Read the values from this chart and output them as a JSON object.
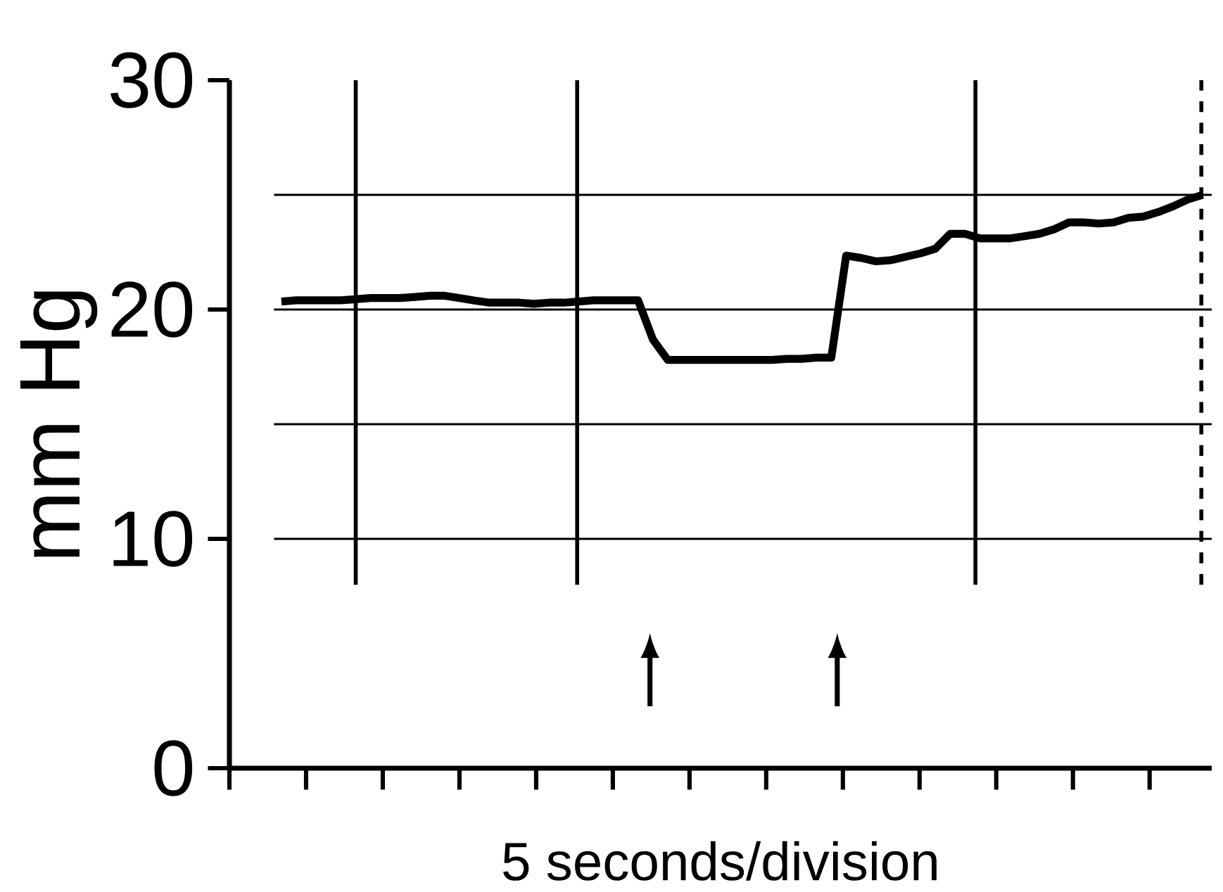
{
  "chart_data": {
    "type": "line",
    "xlabel": "5 seconds/division",
    "ylabel": "mm Hg",
    "categories": [
      null,
      null,
      null,
      null,
      null,
      null,
      null,
      null,
      null,
      null,
      null,
      null,
      null,
      null,
      null,
      null,
      null,
      null,
      null,
      null,
      null,
      null,
      null,
      null,
      null,
      null,
      null,
      null,
      null,
      null,
      null,
      null,
      null,
      null,
      null,
      null,
      null,
      null,
      null,
      null,
      null,
      null,
      null,
      null,
      null,
      null,
      null,
      null,
      null,
      null,
      null,
      null,
      null,
      null,
      null,
      null,
      null,
      null,
      null,
      null,
      null,
      null,
      null
    ],
    "series": [
      {
        "color": "#000000",
        "values": [
          20.35,
          20.4,
          20.4,
          20.4,
          20.4,
          20.45,
          20.5,
          20.5,
          20.5,
          20.55,
          20.6,
          20.6,
          20.5,
          20.39,
          20.3,
          20.3,
          20.3,
          20.25,
          20.3,
          20.3,
          20.35,
          20.4,
          20.4,
          20.4,
          20.4,
          18.69,
          17.8,
          17.8,
          17.8,
          17.8,
          17.8,
          17.8,
          17.8,
          17.8,
          17.85,
          17.85,
          17.9,
          17.9,
          22.35,
          22.25,
          22.1,
          22.15,
          22.3,
          22.45,
          22.65,
          23.3,
          23.3,
          23.1,
          23.1,
          23.1,
          23.2,
          23.3,
          23.5,
          23.8,
          23.8,
          23.75,
          23.8,
          24,
          24.05,
          24.25,
          24.5,
          24.8,
          25
        ]
      }
    ],
    "ylim": [
      0,
      30
    ],
    "yticks": [
      0,
      10,
      20,
      30
    ],
    "ref_lines": [
      {
        "axis": "y",
        "value": 10
      },
      {
        "axis": "y",
        "value": 15
      },
      {
        "axis": "y",
        "value": 20
      },
      {
        "axis": "y",
        "value": 25
      }
    ],
    "grid": false,
    "marker": "none",
    "line_style": "solid"
  }
}
